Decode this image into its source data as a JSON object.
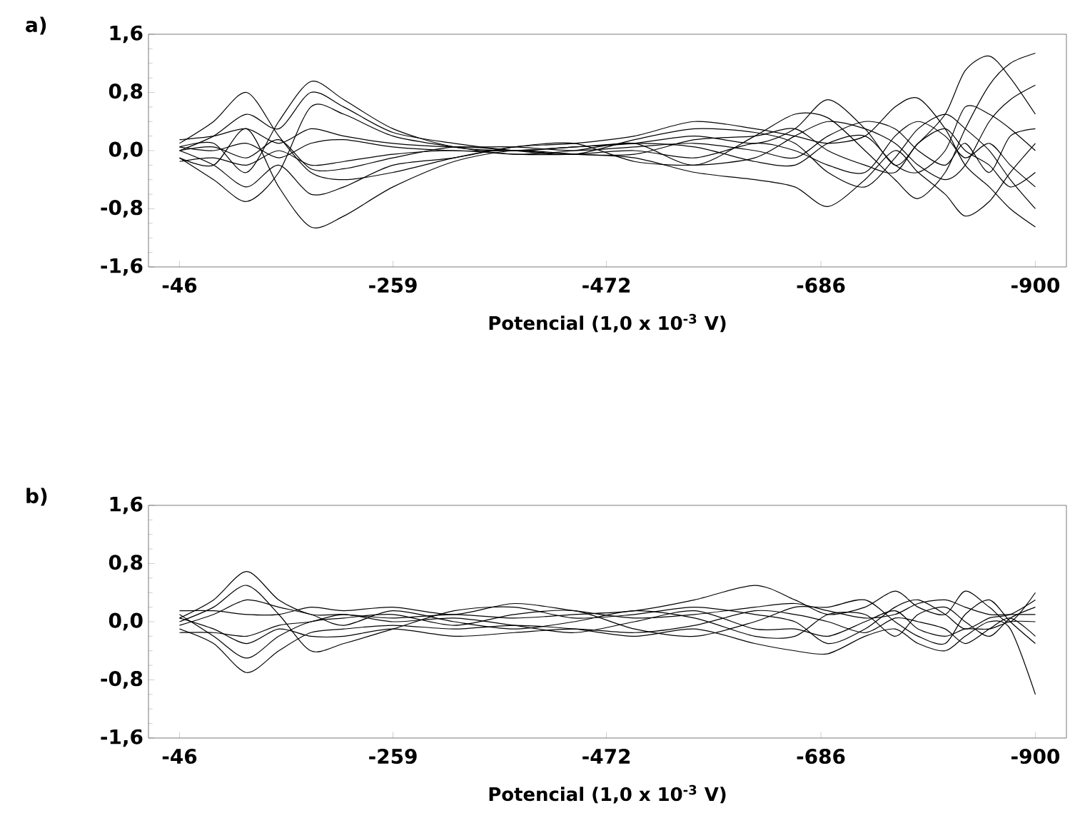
{
  "chart_data": [
    {
      "type": "line",
      "title": "a)",
      "xlabel": "Potencial (1,0 x 10$^{-3}$ V)",
      "x": [
        -46,
        -80,
        -113,
        -145,
        -177,
        -210,
        -259,
        -320,
        -380,
        -440,
        -500,
        -560,
        -620,
        -660,
        -693,
        -730,
        -760,
        -783,
        -810,
        -830,
        -854,
        -875,
        -900
      ],
      "xlim": [
        -15,
        -931
      ],
      "xticks": [
        -46,
        -259,
        -472,
        -686,
        -900
      ],
      "ylim": [
        -1.6,
        1.6
      ],
      "yticks": [
        {
          "value": -1.6,
          "label": "-1,6"
        },
        {
          "value": -0.8,
          "label": "-0,8"
        },
        {
          "value": 0,
          "label": "0,0"
        },
        {
          "value": 0.8,
          "label": "0,8"
        },
        {
          "value": 1.6,
          "label": "1,6"
        }
      ],
      "marker": "none",
      "line_style": "solid",
      "series": [
        {
          "color": "#000000",
          "values": [
            0.05,
            0.1,
            -0.3,
            0.4,
            0.95,
            0.7,
            0.3,
            0.05,
            0,
            0.05,
            0.1,
            0.2,
            0.1,
            0.3,
            0.7,
            0.3,
            -0.2,
            0.1,
            0.5,
            1.1,
            1.3,
            1.0,
            0.5
          ]
        },
        {
          "color": "#000000",
          "values": [
            -0.1,
            -0.2,
            0.3,
            -0.5,
            -1.05,
            -0.9,
            -0.5,
            -0.15,
            0,
            -0.05,
            -0.1,
            -0.3,
            -0.4,
            -0.5,
            -0.77,
            -0.4,
            0,
            -0.3,
            -0.6,
            -0.9,
            -0.7,
            -0.3,
            0.1
          ]
        },
        {
          "color": "#000000",
          "values": [
            0.1,
            0.4,
            0.8,
            0.2,
            -0.3,
            -0.4,
            -0.3,
            -0.1,
            0.05,
            0.1,
            0.2,
            0.4,
            0.3,
            0.2,
            0.1,
            0.2,
            0.6,
            0.72,
            0.3,
            -0.2,
            -0.5,
            -0.8,
            -1.05
          ]
        },
        {
          "color": "#000000",
          "values": [
            -0.1,
            -0.4,
            -0.7,
            -0.3,
            0.6,
            0.5,
            0.2,
            0.05,
            -0.05,
            0,
            0.1,
            -0.2,
            0.2,
            0.5,
            0.45,
            0,
            -0.4,
            -0.66,
            -0.3,
            0.3,
            0.9,
            1.2,
            1.34
          ]
        },
        {
          "color": "#000000",
          "values": [
            0,
            0.2,
            0.5,
            0.3,
            0.8,
            0.6,
            0.25,
            0.1,
            0,
            -0.05,
            0.15,
            0.3,
            0.25,
            0.1,
            -0.3,
            -0.5,
            -0.1,
            0.3,
            0.5,
            0.3,
            0,
            -0.4,
            -0.8
          ]
        },
        {
          "color": "#000000",
          "values": [
            0,
            -0.2,
            -0.5,
            -0.2,
            -0.6,
            -0.5,
            -0.2,
            -0.1,
            0.05,
            0.1,
            -0.15,
            -0.2,
            -0.1,
            0.2,
            0.4,
            0.3,
            0.1,
            -0.2,
            -0.4,
            -0.2,
            0.4,
            0.7,
            0.9
          ]
        },
        {
          "color": "#000000",
          "values": [
            0.15,
            0.2,
            0.3,
            0.1,
            0.3,
            0.2,
            0.1,
            0.05,
            0.05,
            0,
            0.05,
            0.1,
            0,
            -0.1,
            0.2,
            0.4,
            0.3,
            0,
            -0.2,
            0.1,
            -0.3,
            0.2,
            0.3
          ]
        },
        {
          "color": "#000000",
          "values": [
            -0.15,
            -0.1,
            -0.2,
            0,
            -0.2,
            -0.15,
            -0.05,
            0,
            -0.05,
            -0.05,
            0,
            -0.1,
            0.1,
            0,
            -0.2,
            -0.3,
            0.2,
            0.4,
            0.2,
            -0.1,
            0.1,
            -0.2,
            -0.5
          ]
        },
        {
          "color": "#000000",
          "values": [
            0.05,
            0,
            0.1,
            -0.1,
            0.1,
            0.15,
            0.05,
            0,
            0,
            0.05,
            0.1,
            0.05,
            -0.15,
            -0.2,
            0.1,
            0.2,
            -0.2,
            -0.3,
            0,
            0.6,
            0.5,
            0.3,
            0.0
          ]
        },
        {
          "color": "#000000",
          "values": [
            0,
            0.05,
            -0.1,
            0.15,
            -0.25,
            -0.25,
            -0.1,
            0.05,
            0,
            -0.05,
            -0.05,
            0.15,
            0.2,
            0.3,
            0.0,
            -0.2,
            -0.3,
            0.1,
            0.3,
            0.0,
            -0.2,
            -0.5,
            -0.3
          ]
        }
      ]
    },
    {
      "type": "line",
      "title": "b)",
      "xlabel": "Potencial (1,0 x 10$^{-3}$ V)",
      "x": [
        -46,
        -80,
        -113,
        -145,
        -177,
        -210,
        -259,
        -320,
        -380,
        -440,
        -500,
        -560,
        -620,
        -660,
        -693,
        -730,
        -760,
        -783,
        -810,
        -830,
        -854,
        -875,
        -900
      ],
      "xlim": [
        -15,
        -931
      ],
      "xticks": [
        -46,
        -259,
        -472,
        -686,
        -900
      ],
      "ylim": [
        -1.6,
        1.6
      ],
      "yticks": [
        {
          "value": -1.6,
          "label": "-1,6"
        },
        {
          "value": -0.8,
          "label": "-0,8"
        },
        {
          "value": 0,
          "label": "0,0"
        },
        {
          "value": 0.8,
          "label": "0,8"
        },
        {
          "value": 1.6,
          "label": "1,6"
        }
      ],
      "marker": "none",
      "line_style": "solid",
      "series": [
        {
          "color": "#000000",
          "values": [
            0.05,
            0.3,
            0.69,
            0.3,
            0.1,
            0.1,
            0.05,
            0.1,
            0.05,
            0.1,
            0.15,
            0.3,
            0.5,
            0.3,
            0.1,
            0.2,
            0.42,
            0.2,
            0.1,
            0.42,
            0.2,
            0.0,
            0.4
          ]
        },
        {
          "color": "#000000",
          "values": [
            -0.1,
            -0.3,
            -0.7,
            -0.4,
            -0.15,
            -0.1,
            -0.05,
            -0.1,
            -0.05,
            -0.1,
            -0.2,
            -0.1,
            -0.3,
            -0.4,
            -0.44,
            -0.2,
            -0.1,
            -0.3,
            -0.4,
            -0.2,
            0.0,
            -0.1,
            -1.0
          ]
        },
        {
          "color": "#000000",
          "values": [
            0,
            0.2,
            0.5,
            0.1,
            -0.4,
            -0.3,
            -0.1,
            0.15,
            0.2,
            0.05,
            0.1,
            0.2,
            0.1,
            0.0,
            -0.3,
            -0.1,
            0.2,
            0.3,
            0.1,
            -0.1,
            0.05,
            0.1,
            0.3
          ]
        },
        {
          "color": "#000000",
          "values": [
            0.1,
            -0.2,
            -0.5,
            -0.2,
            0.0,
            0.05,
            0.1,
            -0.05,
            0.1,
            0.15,
            -0.1,
            -0.2,
            0.0,
            0.2,
            0.2,
            0.3,
            0.0,
            -0.2,
            -0.3,
            0.1,
            0.3,
            0.0,
            -0.3
          ]
        },
        {
          "color": "#000000",
          "values": [
            -0.05,
            0.1,
            0.3,
            0.2,
            0.1,
            -0.05,
            0.15,
            0.0,
            -0.1,
            0.0,
            0.15,
            0.05,
            -0.2,
            -0.2,
            0.1,
            0.1,
            -0.2,
            0.1,
            0.2,
            0.0,
            -0.2,
            0.05,
            0.2
          ]
        },
        {
          "color": "#000000",
          "values": [
            0.05,
            -0.1,
            -0.3,
            -0.1,
            -0.2,
            -0.2,
            -0.1,
            -0.2,
            -0.15,
            -0.1,
            -0.15,
            -0.05,
            0.15,
            0.1,
            0.0,
            -0.15,
            0.05,
            0.0,
            -0.1,
            -0.3,
            -0.1,
            0.05,
            -0.2
          ]
        },
        {
          "color": "#000000",
          "values": [
            0.15,
            0.15,
            0.1,
            0.1,
            0.2,
            0.15,
            0.2,
            0.1,
            0.25,
            0.15,
            0.05,
            0.1,
            0.2,
            0.25,
            0.15,
            0.05,
            0.1,
            0.25,
            0.3,
            0.2,
            0.1,
            0.1,
            0.1
          ]
        },
        {
          "color": "#000000",
          "values": [
            -0.15,
            -0.15,
            -0.2,
            -0.05,
            0.0,
            0.1,
            0.0,
            0.05,
            -0.05,
            -0.15,
            0.0,
            0.15,
            -0.1,
            -0.1,
            -0.2,
            0.0,
            0.15,
            -0.1,
            -0.2,
            -0.1,
            -0.1,
            0.0,
            0.0
          ]
        }
      ]
    }
  ]
}
